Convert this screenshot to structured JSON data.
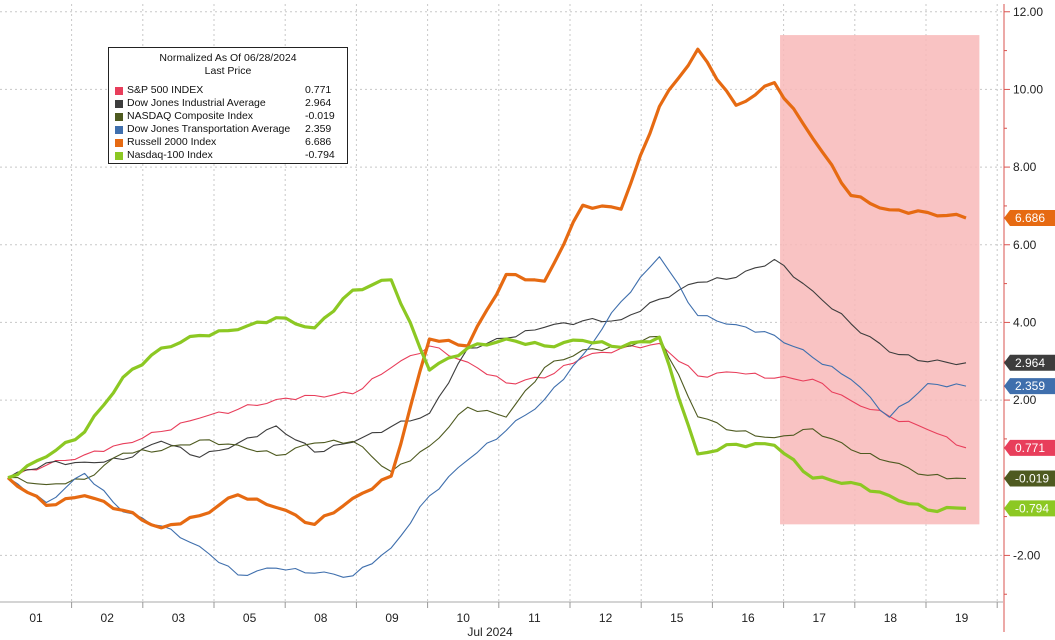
{
  "chart_data": {
    "type": "line",
    "legend": {
      "title_line1": "Normalized As Of 06/28/2024",
      "title_line2": "Last Price",
      "placement": "top-left"
    },
    "x_label": "Jul 2024",
    "x_ticks": [
      "01",
      "02",
      "03",
      "05",
      "08",
      "09",
      "10",
      "11",
      "12",
      "15",
      "16",
      "17",
      "18",
      "19"
    ],
    "y_axis": {
      "side": "right",
      "ylim": [
        -3.2,
        12.2
      ],
      "ticks": [
        -2,
        2,
        4,
        6,
        8,
        10,
        12
      ],
      "tick_labels": [
        "-2.00",
        "2.00",
        "4.00",
        "6.00",
        "8.00",
        "10.00",
        "12.00"
      ]
    },
    "grid": "dotted",
    "highlight": {
      "from_day_index": 10.45,
      "to_day_index": 13.25,
      "ymin": -1.2,
      "ymax": 11.4,
      "color": "#f8b8b8"
    },
    "series": [
      {
        "name": "S&P 500 INDEX",
        "last": "0.771",
        "color": "#e83e5b",
        "width": 1.1,
        "values": [
          0.0,
          0.35,
          0.55,
          0.9,
          1.2,
          1.5,
          1.8,
          2.0,
          2.1,
          2.2,
          2.8,
          3.4,
          3.0,
          2.4,
          2.6,
          3.1,
          3.3,
          3.5,
          2.6,
          2.7,
          2.6,
          2.5,
          2.0,
          1.6,
          1.2,
          0.77
        ]
      },
      {
        "name": "Dow Jones Industrial Average",
        "last": "2.964",
        "color": "#3d3d3d",
        "width": 1.1,
        "values": [
          0.0,
          0.35,
          0.4,
          0.5,
          0.9,
          0.55,
          0.9,
          1.3,
          0.7,
          0.9,
          1.3,
          1.7,
          3.3,
          3.6,
          3.9,
          4.0,
          4.1,
          4.6,
          5.0,
          5.2,
          5.6,
          4.8,
          4.0,
          3.2,
          3.0,
          2.96
        ]
      },
      {
        "name": "NASDAQ Composite Index",
        "last": "-0.019",
        "color": "#4e5a20",
        "width": 1.1,
        "values": [
          0.0,
          -0.2,
          0.0,
          0.6,
          0.7,
          1.0,
          0.8,
          0.6,
          0.9,
          0.9,
          0.2,
          0.8,
          1.8,
          1.6,
          2.8,
          3.3,
          3.4,
          3.6,
          1.6,
          1.2,
          1.0,
          1.3,
          0.7,
          0.4,
          0.1,
          -0.02
        ]
      },
      {
        "name": "Dow Jones Transportation Average",
        "last": "2.359",
        "color": "#3f6fad",
        "width": 1.1,
        "values": [
          0.0,
          -0.6,
          0.1,
          -0.9,
          -1.2,
          -1.8,
          -2.5,
          -2.3,
          -2.5,
          -2.5,
          -1.8,
          -0.5,
          0.5,
          1.2,
          2.0,
          3.2,
          4.5,
          5.7,
          4.2,
          3.9,
          3.7,
          3.1,
          2.5,
          1.6,
          2.4,
          2.36
        ]
      },
      {
        "name": "Russell 2000 Index",
        "last": "6.686",
        "color": "#e66a12",
        "width": 3.2,
        "values": [
          0.0,
          -0.7,
          -0.5,
          -0.8,
          -1.3,
          -1.0,
          -0.4,
          -0.8,
          -1.2,
          -0.5,
          0.0,
          3.6,
          3.4,
          5.2,
          5.1,
          7.0,
          6.9,
          9.6,
          11.0,
          9.6,
          10.2,
          8.7,
          7.3,
          6.9,
          6.8,
          6.69
        ]
      },
      {
        "name": "Nasdaq-100 Index",
        "last": "-0.794",
        "color": "#8cc823",
        "width": 3.2,
        "values": [
          0.0,
          0.5,
          1.2,
          2.6,
          3.3,
          3.7,
          3.8,
          4.1,
          3.9,
          4.8,
          5.1,
          2.8,
          3.3,
          3.6,
          3.4,
          3.5,
          3.4,
          3.6,
          0.6,
          0.9,
          0.8,
          0.0,
          -0.1,
          -0.5,
          -0.8,
          -0.79
        ]
      }
    ]
  }
}
